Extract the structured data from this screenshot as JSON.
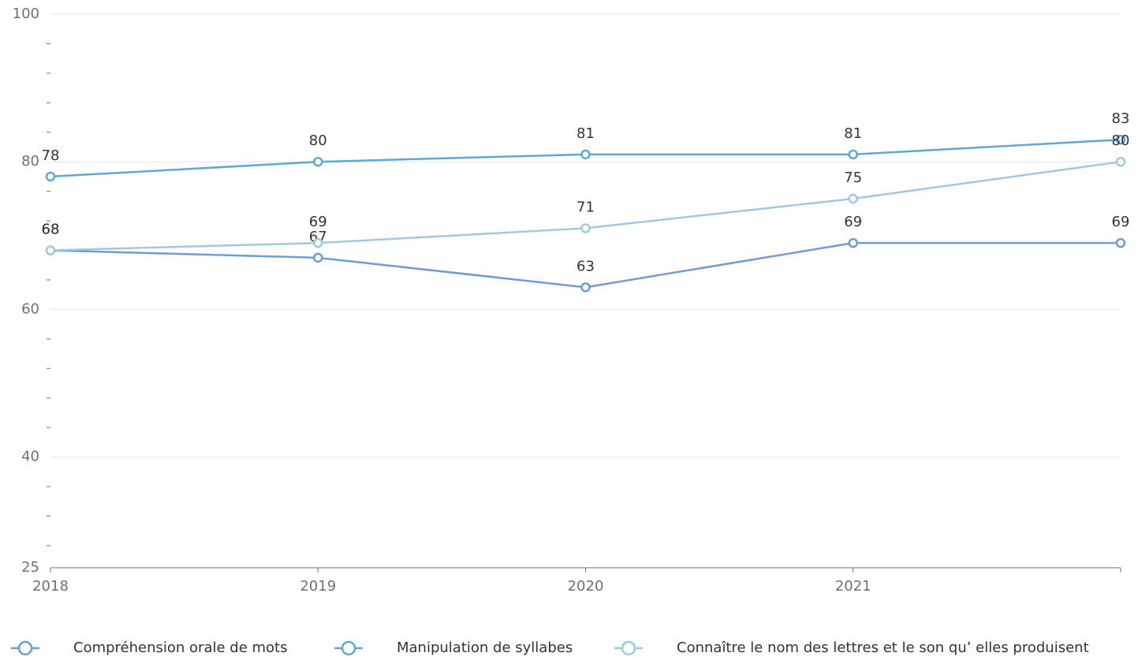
{
  "chart_data": {
    "type": "line",
    "categories": [
      "2018",
      "2019",
      "2020",
      "2021",
      null
    ],
    "series": [
      {
        "name": "Compréhension orale de mots",
        "color": "#6f9bd6",
        "values": [
          68,
          67,
          63,
          69,
          69
        ]
      },
      {
        "name": "Manipulation de syllabes",
        "color": "#5ea8d3",
        "values": [
          78,
          80,
          81,
          81,
          83
        ]
      },
      {
        "name": "Connaître le nom des lettres et le son qu’  elles produisent",
        "color": "#9ecae1",
        "values": [
          68,
          69,
          71,
          75,
          80
        ]
      }
    ],
    "ylim": [
      25,
      100
    ],
    "yticks": [
      25,
      40,
      60,
      80,
      100
    ],
    "minor_yticks": [
      28,
      32,
      36,
      44,
      48,
      52,
      56,
      64,
      68,
      72,
      76,
      84,
      88,
      92,
      96
    ],
    "grid": true,
    "legend": "bottom"
  }
}
